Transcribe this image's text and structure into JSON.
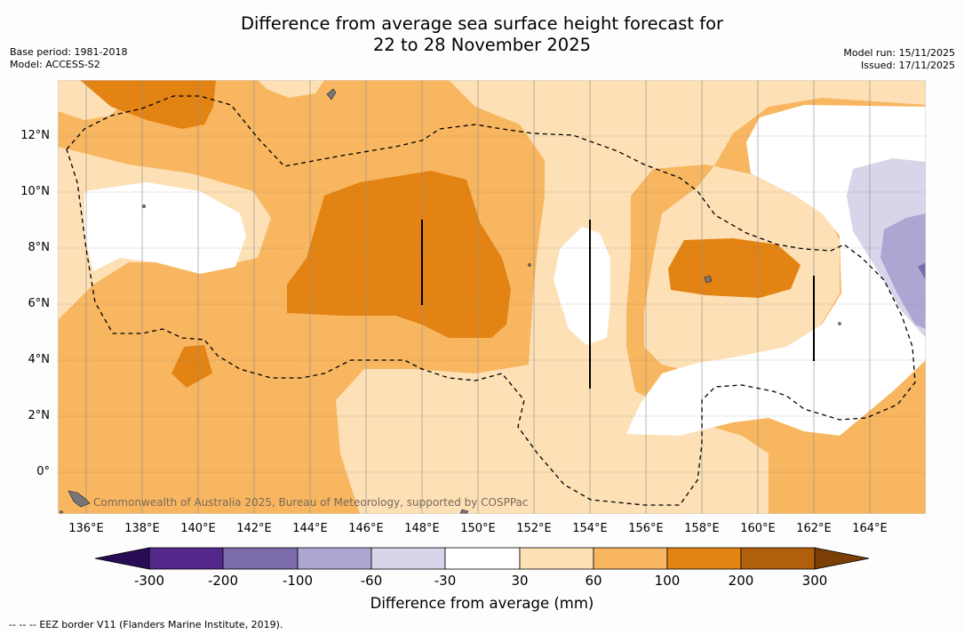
{
  "title": {
    "line1": "Difference from average sea surface height forecast for",
    "line2": "22 to 28 November 2025"
  },
  "meta_left": {
    "base_period": "Base period: 1981-2018",
    "model": "Model: ACCESS-S2"
  },
  "meta_right": {
    "model_run": "Model run: 15/11/2025",
    "issued": "Issued: 17/11/2025"
  },
  "credit": "Commonwealth of Australia 2025, Bureau of Meteorology, supported by COSPPac",
  "lat_labels": [
    "12°N",
    "10°N",
    "8°N",
    "6°N",
    "4°N",
    "2°N",
    "0°"
  ],
  "lon_labels": [
    "136°E",
    "138°E",
    "140°E",
    "142°E",
    "144°E",
    "146°E",
    "148°E",
    "150°E",
    "152°E",
    "154°E",
    "156°E",
    "158°E",
    "160°E",
    "162°E",
    "164°E"
  ],
  "colorbar": {
    "labels": [
      "-300",
      "-200",
      "-100",
      "-60",
      "-30",
      "30",
      "60",
      "100",
      "200",
      "300"
    ],
    "title": "Difference from average (mm)",
    "colors": {
      "below_-300": "#2a0c55",
      "-300_-200": "#54288a",
      "-200_-100": "#7b6bab",
      "-100_-60": "#aea6d2",
      "-60_-30": "#d6d5ea",
      "-30_30": "#ffffff",
      "30_60": "#fde0b5",
      "60_100": "#f8b660",
      "100_200": "#e38314",
      "200_300": "#b15f0b",
      "above_300": "#7c3e07"
    }
  },
  "legend_footnote": {
    "line_symbol": "--  --  --",
    "text": "EEZ border V11 (Flanders Marine Institute, 2019)."
  }
}
